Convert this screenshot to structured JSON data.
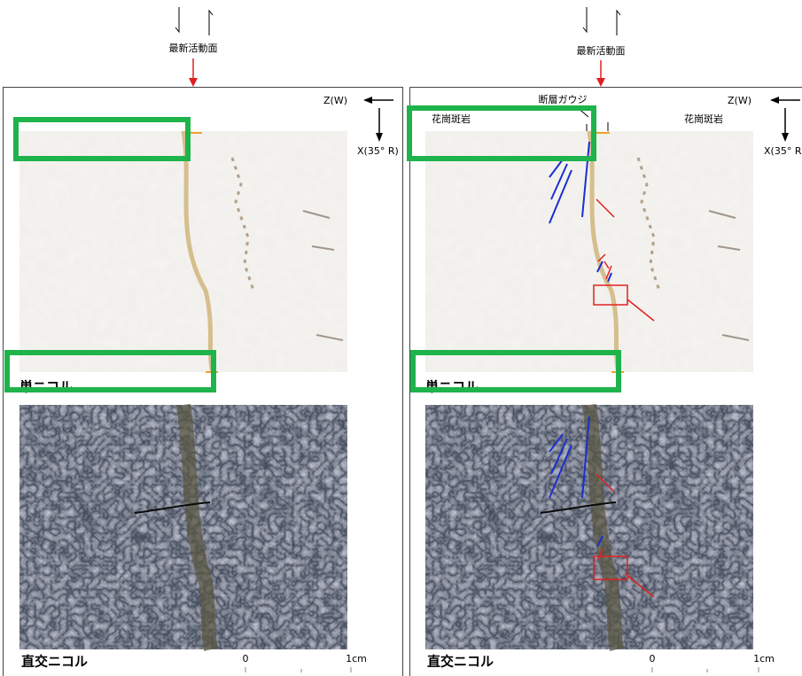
{
  "panels": [
    {
      "top_label": "最新活動面",
      "axis_z": "Z(W)",
      "axis_x": "X(35° R)",
      "plane_label": "単ニコル",
      "cross_label": "直交ニコル",
      "scale_0": "0",
      "scale_1": "1cm"
    },
    {
      "top_label": "最新活動面",
      "axis_z": "Z(W)",
      "axis_x": "X(35° R",
      "fault_gouge": "断層ガウジ",
      "rock_left": "花崗斑岩",
      "rock_right": "花崗斑岩",
      "plane_label": "単ニコル",
      "cross_label": "直交ニコル",
      "scale_0": "0",
      "scale_1": "1cm"
    }
  ]
}
